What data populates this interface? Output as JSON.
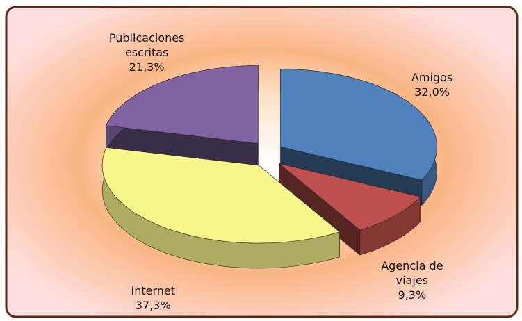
{
  "chart_data": {
    "type": "pie3d",
    "categories": [
      "Amigos",
      "Agencia de viajes",
      "Internet",
      "Publicaciones escritas"
    ],
    "values": [
      32.0,
      9.3,
      37.3,
      21.3
    ],
    "value_labels": [
      "32,0%",
      "9,3%",
      "37,3%",
      "21,3%"
    ],
    "colors": [
      "#4f81bd",
      "#c0504d",
      "#f7f78c",
      "#8064a2"
    ],
    "exploded": true
  }
}
